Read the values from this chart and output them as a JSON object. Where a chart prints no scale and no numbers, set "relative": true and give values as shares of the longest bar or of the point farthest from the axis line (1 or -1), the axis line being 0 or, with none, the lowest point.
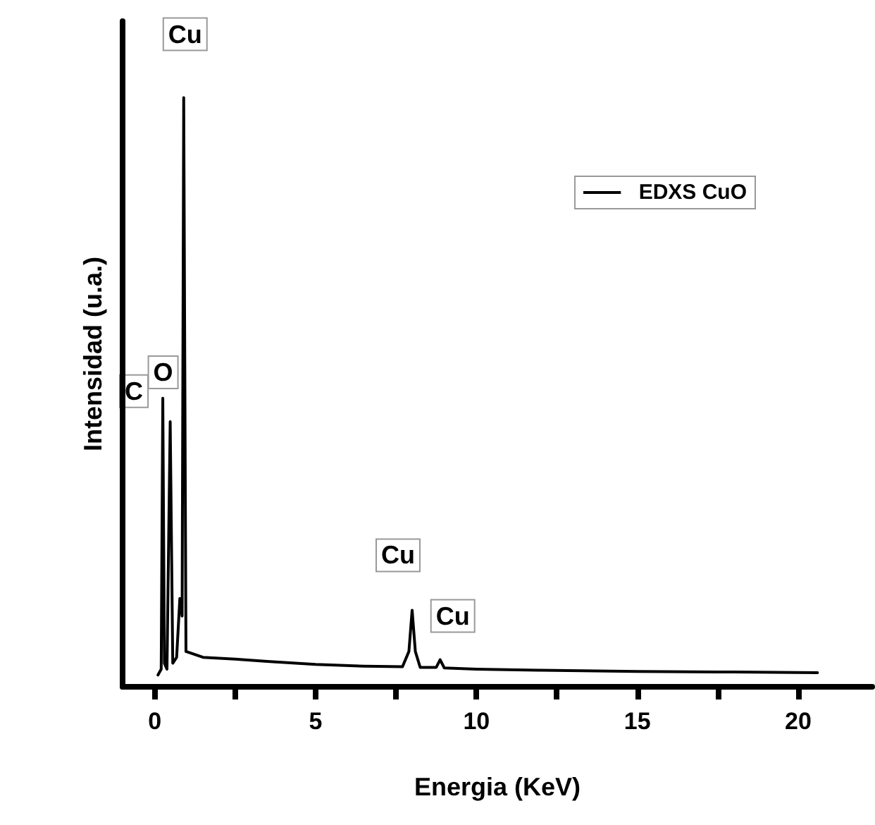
{
  "chart_data": {
    "type": "line",
    "xlabel": "Energia (KeV)",
    "ylabel": "Intensidad (u.a.)",
    "relative": true,
    "grid": false,
    "legend": "top right",
    "marker": "none",
    "line_style": "solid",
    "xlim": [
      -1,
      22.3
    ],
    "xticks": [
      0,
      {
        "value": 2.5,
        "label": null
      },
      5,
      {
        "value": 7.5,
        "label": null
      },
      10,
      {
        "value": 12.5,
        "label": null
      },
      15,
      {
        "value": 17.5,
        "label": null
      },
      20
    ],
    "series": [
      {
        "name": "EDXS CuO",
        "color": "#000000",
        "x": [
          0.1,
          0.2,
          0.25,
          0.3,
          0.38,
          0.48,
          0.56,
          0.68,
          0.78,
          0.85,
          0.9,
          0.97,
          1.5,
          2.5,
          3.5,
          5,
          6.5,
          7.7,
          7.9,
          8.0,
          8.1,
          8.25,
          8.75,
          8.87,
          9.0,
          10,
          12,
          15,
          18,
          20.6
        ],
        "values": [
          0.02,
          0.03,
          0.49,
          0.04,
          0.03,
          0.45,
          0.04,
          0.05,
          0.15,
          0.12,
          1,
          0.06,
          0.05,
          0.047,
          0.043,
          0.038,
          0.035,
          0.034,
          0.06,
          0.13,
          0.06,
          0.033,
          0.033,
          0.046,
          0.032,
          0.03,
          0.028,
          0.026,
          0.025,
          0.024
        ]
      }
    ],
    "annotations": [
      {
        "text": "C",
        "x": 0.25,
        "y": 0.49
      },
      {
        "text": "O",
        "x": 0.48,
        "y": 0.45
      },
      {
        "text": "Cu",
        "x": 0.9,
        "y": 1
      },
      {
        "text": "Cu",
        "x": 8.0,
        "y": 0.13
      },
      {
        "text": "Cu",
        "x": 8.87,
        "y": 0.046
      }
    ]
  }
}
